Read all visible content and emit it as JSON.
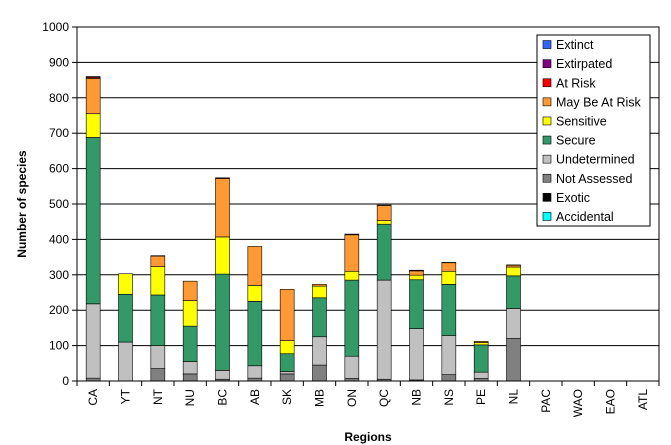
{
  "chart_data": {
    "type": "bar",
    "stacked": true,
    "title": "",
    "xlabel": "Regions",
    "ylabel": "Number of species",
    "ylim": [
      0,
      1000
    ],
    "yticks": [
      0,
      100,
      200,
      300,
      400,
      500,
      600,
      700,
      800,
      900,
      1000
    ],
    "grid": true,
    "legend_position": "top-right",
    "categories": [
      "CA",
      "YT",
      "NT",
      "NU",
      "BC",
      "AB",
      "SK",
      "MB",
      "ON",
      "QC",
      "NB",
      "NS",
      "PE",
      "NL",
      "PAC",
      "WAO",
      "EAO",
      "ATL"
    ],
    "series": [
      {
        "name": "Extinct",
        "color": "#3366ff",
        "values": [
          1,
          0,
          0,
          0,
          0,
          0,
          0,
          0,
          0,
          0,
          0,
          0,
          0,
          0,
          0,
          0,
          0,
          0
        ]
      },
      {
        "name": "Extirpated",
        "color": "#800080",
        "values": [
          1,
          0,
          0,
          0,
          0,
          0,
          0,
          0,
          0,
          0,
          0,
          0,
          0,
          0,
          0,
          0,
          0,
          0
        ]
      },
      {
        "name": "At Risk",
        "color": "#ff0000",
        "values": [
          3,
          0,
          1,
          0,
          2,
          0,
          0,
          0,
          2,
          1,
          2,
          1,
          0,
          1,
          0,
          0,
          0,
          0
        ]
      },
      {
        "name": "May Be At Risk",
        "color": "#ff9933",
        "values": [
          100,
          0,
          30,
          55,
          165,
          110,
          145,
          5,
          103,
          43,
          12,
          24,
          3,
          5,
          0,
          0,
          0,
          0
        ]
      },
      {
        "name": "Sensitive",
        "color": "#ffff00",
        "values": [
          67,
          58,
          80,
          72,
          105,
          45,
          37,
          33,
          25,
          10,
          13,
          37,
          7,
          25,
          0,
          0,
          0,
          0
        ]
      },
      {
        "name": "Secure",
        "color": "#339966",
        "values": [
          470,
          135,
          143,
          100,
          272,
          182,
          50,
          110,
          215,
          158,
          138,
          145,
          77,
          92,
          0,
          0,
          0,
          0
        ]
      },
      {
        "name": "Undetermined",
        "color": "#c0c0c0",
        "values": [
          210,
          110,
          65,
          35,
          25,
          35,
          7,
          80,
          63,
          280,
          145,
          110,
          18,
          85,
          0,
          0,
          0,
          0
        ]
      },
      {
        "name": "Not Assessed",
        "color": "#808080",
        "values": [
          8,
          0,
          35,
          20,
          5,
          8,
          20,
          45,
          7,
          5,
          3,
          18,
          7,
          120,
          0,
          0,
          0,
          0
        ]
      },
      {
        "name": "Exotic",
        "color": "#000000",
        "values": [
          0,
          0,
          0,
          0,
          0,
          0,
          0,
          0,
          0,
          0,
          0,
          0,
          0,
          0,
          0,
          0,
          0,
          0
        ]
      },
      {
        "name": "Accidental",
        "color": "#00ffff",
        "values": [
          0,
          0,
          0,
          0,
          0,
          0,
          0,
          0,
          0,
          0,
          0,
          0,
          0,
          0,
          0,
          0,
          0,
          0
        ]
      }
    ]
  }
}
